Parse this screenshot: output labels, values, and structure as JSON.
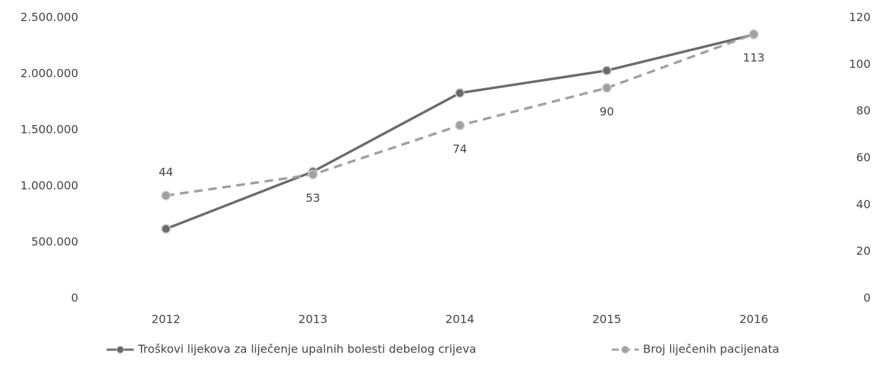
{
  "chart_data": {
    "type": "line",
    "categories": [
      "2012",
      "2013",
      "2014",
      "2015",
      "2016"
    ],
    "series": [
      {
        "name": "Troškovi lijekova za liječenje upalnih bolesti debelog crijeva",
        "color": "#6b6b6b",
        "dash": false,
        "values": [
          620000,
          1130000,
          1830000,
          2030000,
          2350000
        ]
      },
      {
        "name": "Broj liječenih pacijenata",
        "color": "#a0a0a0",
        "dash": true,
        "axis": "y2",
        "values": [
          44,
          53,
          74,
          90,
          113
        ],
        "data_labels": true
      }
    ],
    "ylim": [
      0,
      2500000
    ],
    "yticks": [
      0,
      {
        "value": 500000,
        "label": "500.000"
      },
      {
        "value": 1000000,
        "label": "1.000.000"
      },
      {
        "value": 1500000,
        "label": "1.500.000"
      },
      {
        "value": 2000000,
        "label": "2.000.000"
      },
      {
        "value": 2500000,
        "label": "2.500.000"
      }
    ],
    "y2lim": [
      0,
      120
    ],
    "y2ticks": [
      0,
      20,
      40,
      60,
      80,
      100,
      120
    ],
    "grid": false,
    "legend": "bottom"
  }
}
